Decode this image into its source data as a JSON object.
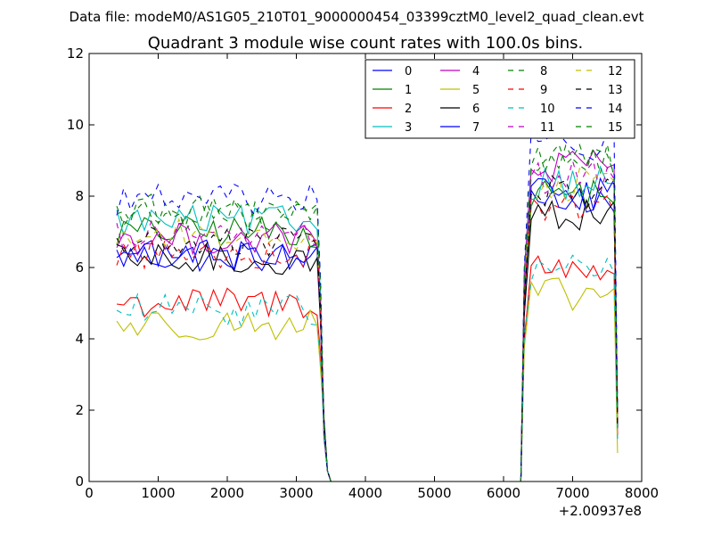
{
  "chart_data": {
    "type": "line",
    "suptitle": "Data file: modeM0/AS1G05_210T01_9000000454_03399cztM0_level2_quad_clean.evt",
    "title": "Quadrant 3 module wise count rates with 100.0s bins.",
    "xlabel": "",
    "ylabel": "",
    "xlim": [
      0,
      8000
    ],
    "ylim": [
      0,
      12
    ],
    "x_offset_label": "+2.00937e8",
    "x_ticks": [
      "0",
      "1000",
      "2000",
      "3000",
      "4000",
      "5000",
      "6000",
      "7000",
      "8000"
    ],
    "y_ticks": [
      "0",
      "2",
      "4",
      "6",
      "8",
      "10",
      "12"
    ],
    "grid": false,
    "legend_position": "top-right",
    "segments": [
      {
        "start": 400,
        "end": 3300,
        "step": 100
      },
      {
        "start": 6300,
        "end": 7600,
        "step": 100
      }
    ],
    "drop_x": [
      3350,
      3400,
      3450
    ],
    "gap": [
      3500,
      6250
    ],
    "rise_x": 6300,
    "end_x": 7650,
    "series": [
      {
        "name": "0",
        "color": "#0000ff",
        "dash": "solid",
        "base1": 6.3,
        "base2": 8.0,
        "end": 1.5
      },
      {
        "name": "1",
        "color": "#008000",
        "dash": "solid",
        "base1": 7.0,
        "base2": 8.1,
        "end": 1.6
      },
      {
        "name": "2",
        "color": "#ff0000",
        "dash": "solid",
        "base1": 5.0,
        "base2": 6.0,
        "end": 1.3
      },
      {
        "name": "3",
        "color": "#00bfbf",
        "dash": "solid",
        "base1": 7.3,
        "base2": 8.4,
        "end": 1.7
      },
      {
        "name": "4",
        "color": "#bf00bf",
        "dash": "solid",
        "base1": 6.8,
        "base2": 8.8,
        "end": 1.8
      },
      {
        "name": "5",
        "color": "#bfbf00",
        "dash": "solid",
        "base1": 4.4,
        "base2": 5.2,
        "end": 0.8
      },
      {
        "name": "6",
        "color": "#000000",
        "dash": "solid",
        "base1": 6.2,
        "base2": 7.5,
        "end": 1.5
      },
      {
        "name": "7",
        "color": "#0000ff",
        "dash": "solid",
        "base1": 6.4,
        "base2": 8.0,
        "end": 1.6
      },
      {
        "name": "8",
        "color": "#008000",
        "dash": "dashed",
        "base1": 7.5,
        "base2": 9.0,
        "end": 1.9
      },
      {
        "name": "9",
        "color": "#ff0000",
        "dash": "dashed",
        "base1": 6.4,
        "base2": 7.8,
        "end": 1.6
      },
      {
        "name": "10",
        "color": "#00bfbf",
        "dash": "dashed",
        "base1": 4.8,
        "base2": 6.0,
        "end": 1.2
      },
      {
        "name": "11",
        "color": "#bf00bf",
        "dash": "dashed",
        "base1": 6.9,
        "base2": 8.5,
        "end": 1.8
      },
      {
        "name": "12",
        "color": "#bfbf00",
        "dash": "dashed",
        "base1": 6.9,
        "base2": 8.3,
        "end": 1.7
      },
      {
        "name": "13",
        "color": "#000000",
        "dash": "dashed",
        "base1": 6.7,
        "base2": 8.1,
        "end": 1.6
      },
      {
        "name": "14",
        "color": "#0000ff",
        "dash": "dashed",
        "base1": 7.9,
        "base2": 9.4,
        "end": 2.0
      },
      {
        "name": "15",
        "color": "#008000",
        "dash": "dashed",
        "base1": 7.6,
        "base2": 9.0,
        "end": 1.9
      }
    ]
  }
}
